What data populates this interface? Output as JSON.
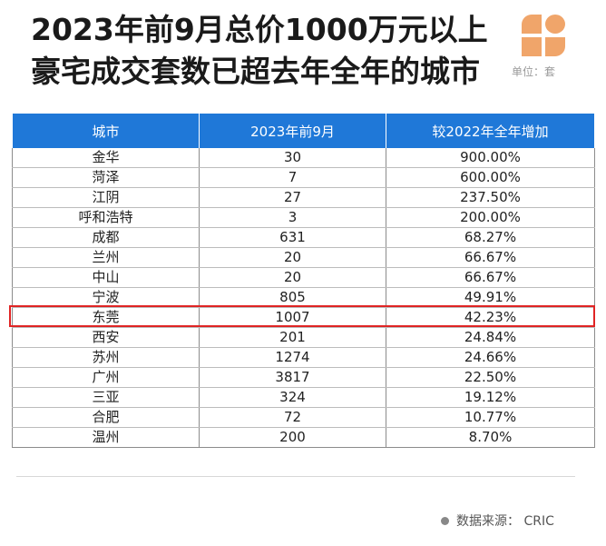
{
  "title": {
    "line1": "2023年前9月总价1000万元以上",
    "line2": "豪宅成交套数已超去年全年的城市"
  },
  "unit_label": "单位：套",
  "table": {
    "headers": [
      "城市",
      "2023年前9月",
      "较2022年全年增加"
    ],
    "rows": [
      [
        "金华",
        "30",
        "900.00%"
      ],
      [
        "菏泽",
        "7",
        "600.00%"
      ],
      [
        "江阴",
        "27",
        "237.50%"
      ],
      [
        "呼和浩特",
        "3",
        "200.00%"
      ],
      [
        "成都",
        "631",
        "68.27%"
      ],
      [
        "兰州",
        "20",
        "66.67%"
      ],
      [
        "中山",
        "20",
        "66.67%"
      ],
      [
        "宁波",
        "805",
        "49.91%"
      ],
      [
        "东莞",
        "1007",
        "42.23%"
      ],
      [
        "西安",
        "201",
        "24.84%"
      ],
      [
        "苏州",
        "1274",
        "24.66%"
      ],
      [
        "广州",
        "3817",
        "22.50%"
      ],
      [
        "三亚",
        "324",
        "19.12%"
      ],
      [
        "合肥",
        "72",
        "10.77%"
      ],
      [
        "温州",
        "200",
        "8.70%"
      ]
    ],
    "highlighted_city": "东莞"
  },
  "source": "数据来源：  CRIC",
  "colors": {
    "header_bg": "#1f78d8",
    "highlight": "#e02424",
    "logo": "#f0a56a"
  }
}
